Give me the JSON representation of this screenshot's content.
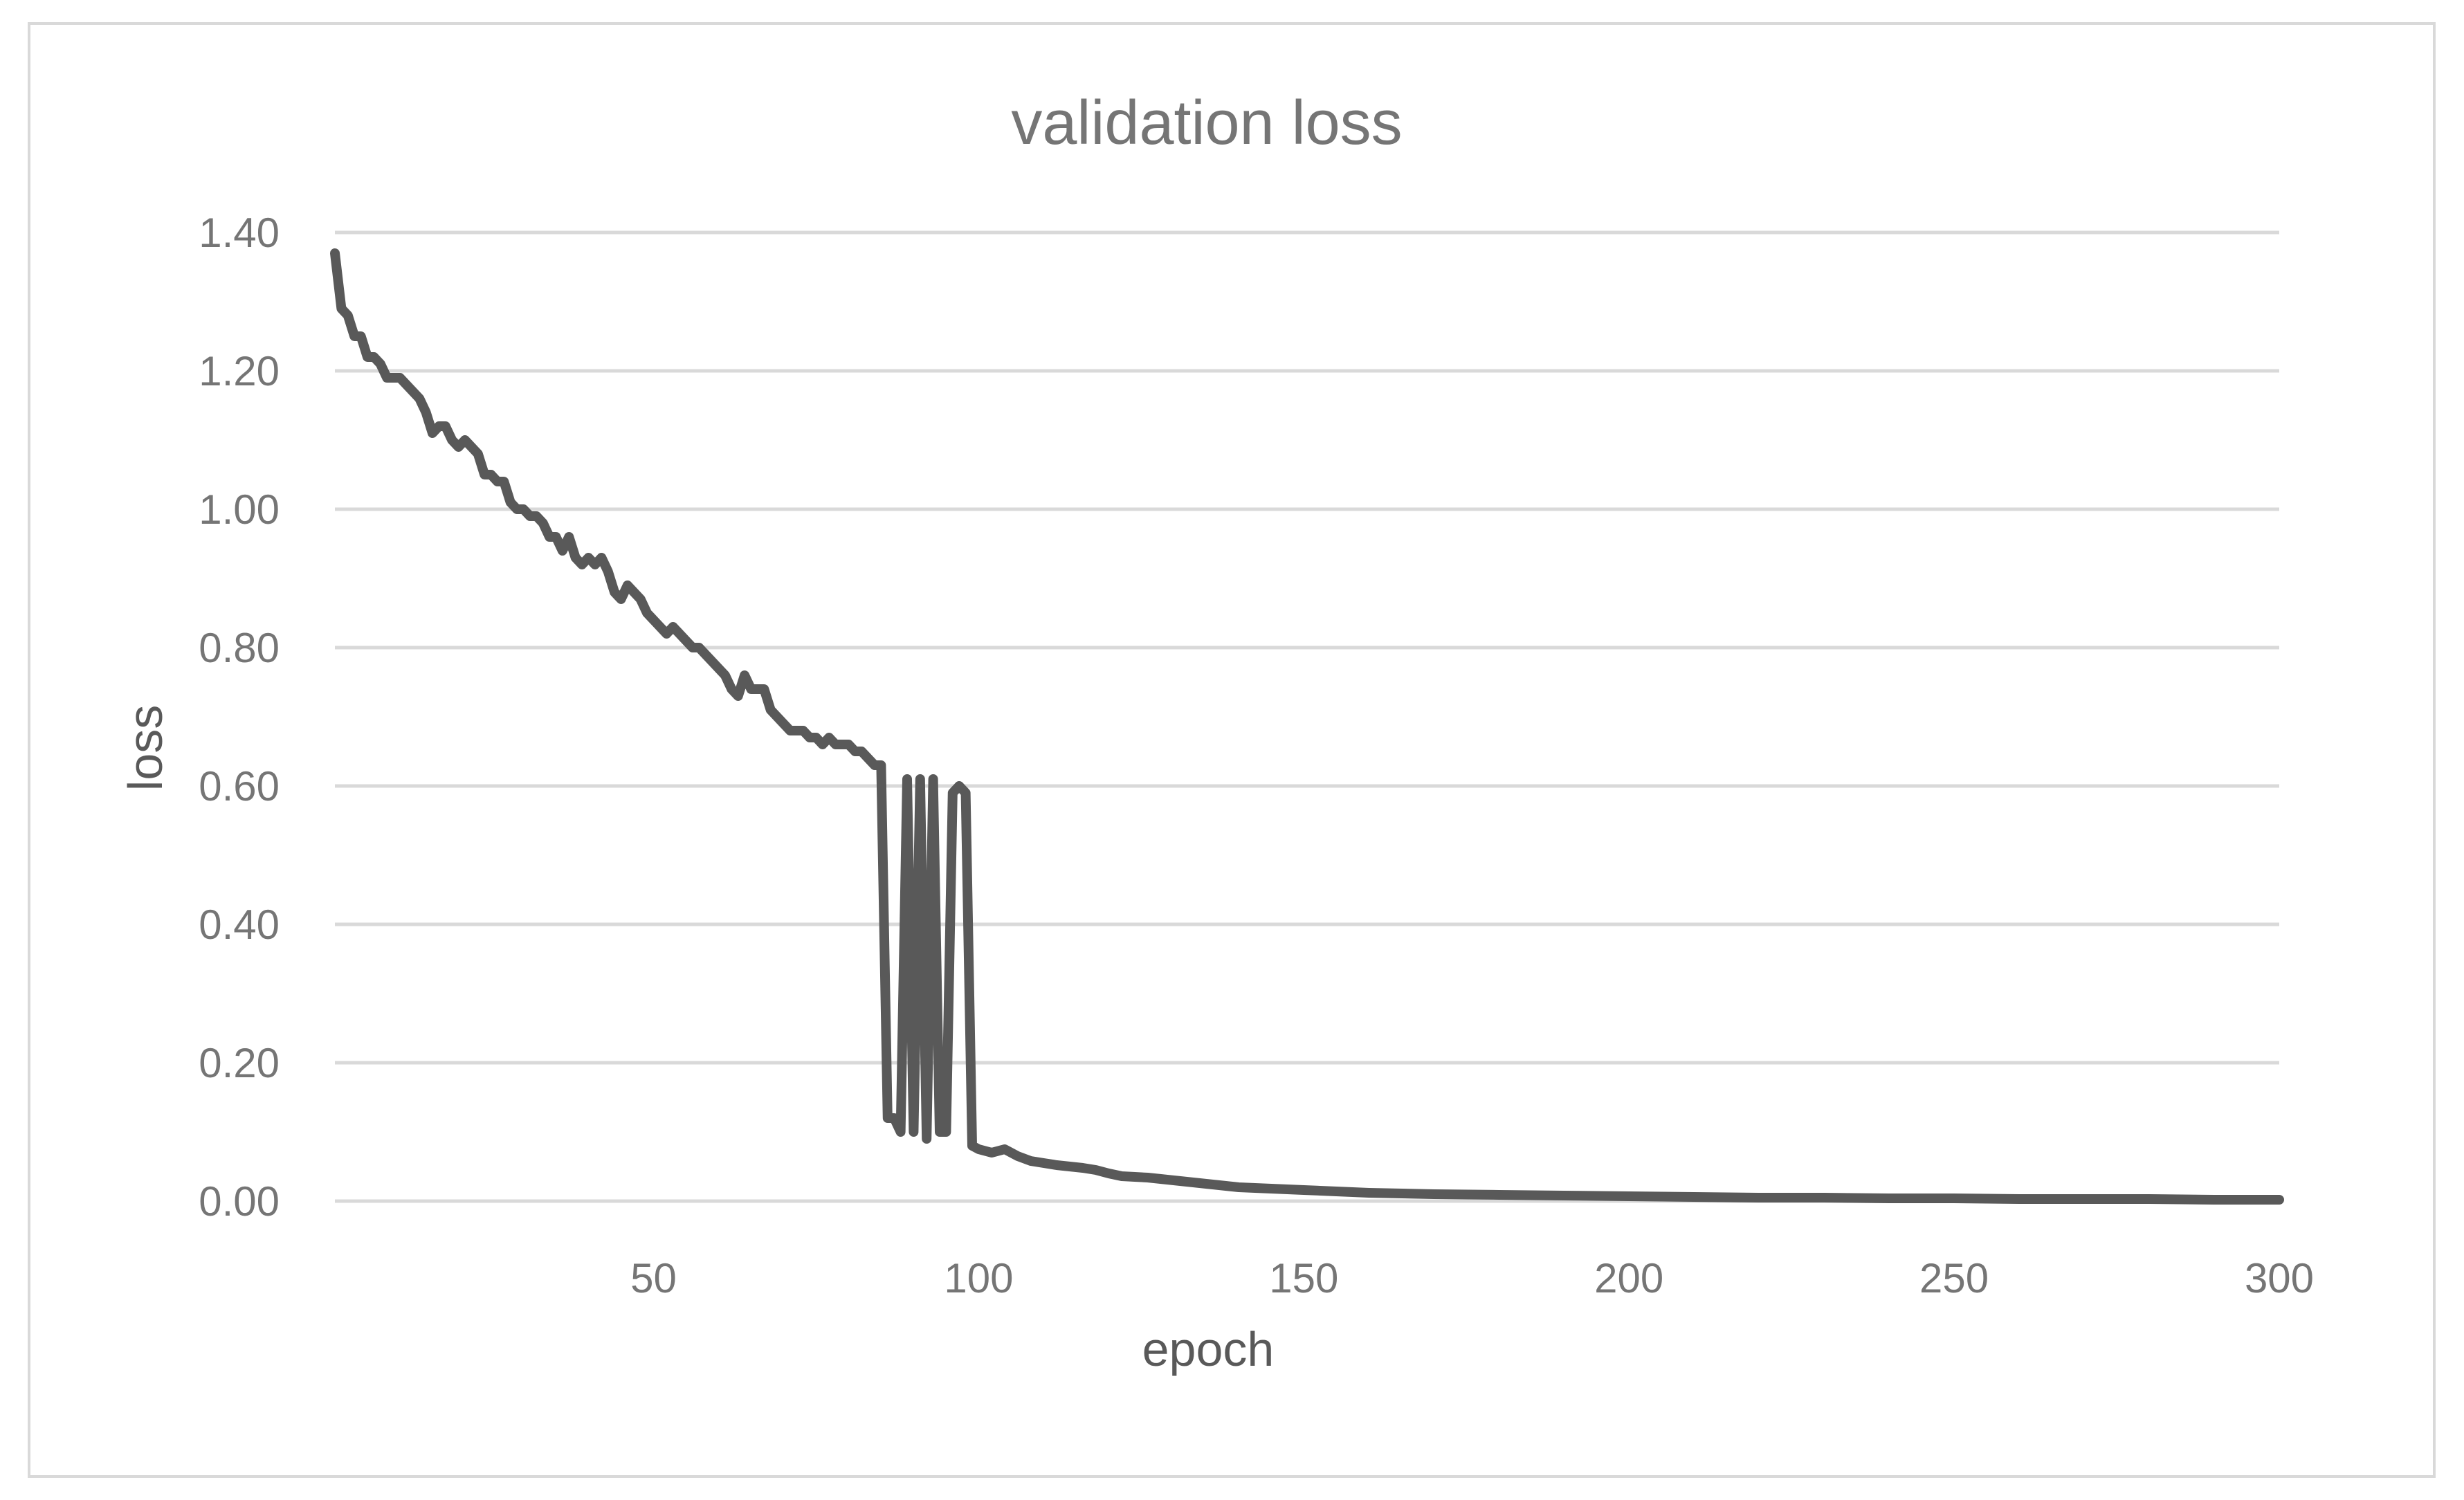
{
  "chart_data": {
    "type": "line",
    "title": "validation loss",
    "xlabel": "epoch",
    "ylabel": "loss",
    "xlim": [
      1,
      300
    ],
    "ylim": [
      0,
      1.4
    ],
    "grid": true,
    "legend": "none",
    "x_ticks": [
      50,
      100,
      150,
      200,
      250,
      300
    ],
    "x_tick_labels": [
      "50",
      "100",
      "150",
      "200",
      "250",
      "300"
    ],
    "y_ticks": [
      0,
      0.2,
      0.4,
      0.6,
      0.8,
      1.0,
      1.2,
      1.4
    ],
    "y_tick_labels": [
      "0.00",
      "0.20",
      "0.40",
      "0.60",
      "0.80",
      "1.00",
      "1.20",
      "1.40"
    ],
    "line_color": "#595959",
    "grid_color": "#d9d9d9",
    "series": [
      {
        "x": [
          1,
          2,
          3,
          4,
          5,
          6,
          7,
          8,
          9,
          10,
          11,
          12,
          13,
          14,
          15,
          16,
          17,
          18,
          19,
          20,
          21,
          22,
          23,
          24,
          25,
          26,
          27,
          28,
          29,
          30,
          31,
          32,
          33,
          34,
          35,
          36,
          37,
          38,
          39,
          40,
          41,
          42,
          43,
          44,
          45,
          46,
          47,
          48,
          49,
          50,
          51,
          52,
          53,
          54,
          55,
          56,
          57,
          58,
          59,
          60,
          61,
          62,
          63,
          64,
          65,
          66,
          67,
          68,
          69,
          70,
          71,
          72,
          73,
          74,
          75,
          76,
          77,
          78,
          79,
          80,
          81,
          82,
          83,
          84,
          85,
          86,
          87,
          88,
          89,
          90,
          91,
          92,
          93,
          94,
          95,
          96,
          97,
          98,
          99,
          100,
          102,
          104,
          106,
          108,
          110,
          112,
          114,
          116,
          118,
          120,
          122,
          124,
          126,
          128,
          130,
          132,
          134,
          136,
          138,
          140,
          145,
          150,
          155,
          160,
          170,
          180,
          190,
          200,
          210,
          220,
          230,
          240,
          250,
          260,
          270,
          280,
          290,
          300
        ],
        "y": [
          1.37,
          1.29,
          1.28,
          1.25,
          1.25,
          1.22,
          1.22,
          1.21,
          1.19,
          1.19,
          1.19,
          1.18,
          1.17,
          1.16,
          1.14,
          1.11,
          1.12,
          1.12,
          1.1,
          1.09,
          1.1,
          1.09,
          1.08,
          1.05,
          1.05,
          1.04,
          1.04,
          1.01,
          1.0,
          1.0,
          0.99,
          0.99,
          0.98,
          0.96,
          0.96,
          0.94,
          0.96,
          0.93,
          0.92,
          0.93,
          0.92,
          0.93,
          0.91,
          0.88,
          0.87,
          0.89,
          0.88,
          0.87,
          0.85,
          0.84,
          0.83,
          0.82,
          0.83,
          0.82,
          0.81,
          0.8,
          0.8,
          0.79,
          0.78,
          0.77,
          0.76,
          0.74,
          0.73,
          0.76,
          0.74,
          0.74,
          0.74,
          0.71,
          0.7,
          0.69,
          0.68,
          0.68,
          0.68,
          0.67,
          0.67,
          0.66,
          0.67,
          0.66,
          0.66,
          0.66,
          0.65,
          0.65,
          0.64,
          0.63,
          0.63,
          0.12,
          0.12,
          0.1,
          0.61,
          0.1,
          0.61,
          0.09,
          0.61,
          0.1,
          0.1,
          0.59,
          0.6,
          0.59,
          0.08,
          0.075,
          0.07,
          0.075,
          0.065,
          0.058,
          0.055,
          0.052,
          0.05,
          0.048,
          0.045,
          0.04,
          0.036,
          0.035,
          0.034,
          0.032,
          0.03,
          0.028,
          0.026,
          0.024,
          0.022,
          0.02,
          0.018,
          0.016,
          0.014,
          0.012,
          0.01,
          0.009,
          0.008,
          0.007,
          0.006,
          0.005,
          0.005,
          0.004,
          0.004,
          0.003,
          0.003,
          0.003,
          0.002,
          0.002
        ]
      }
    ]
  }
}
